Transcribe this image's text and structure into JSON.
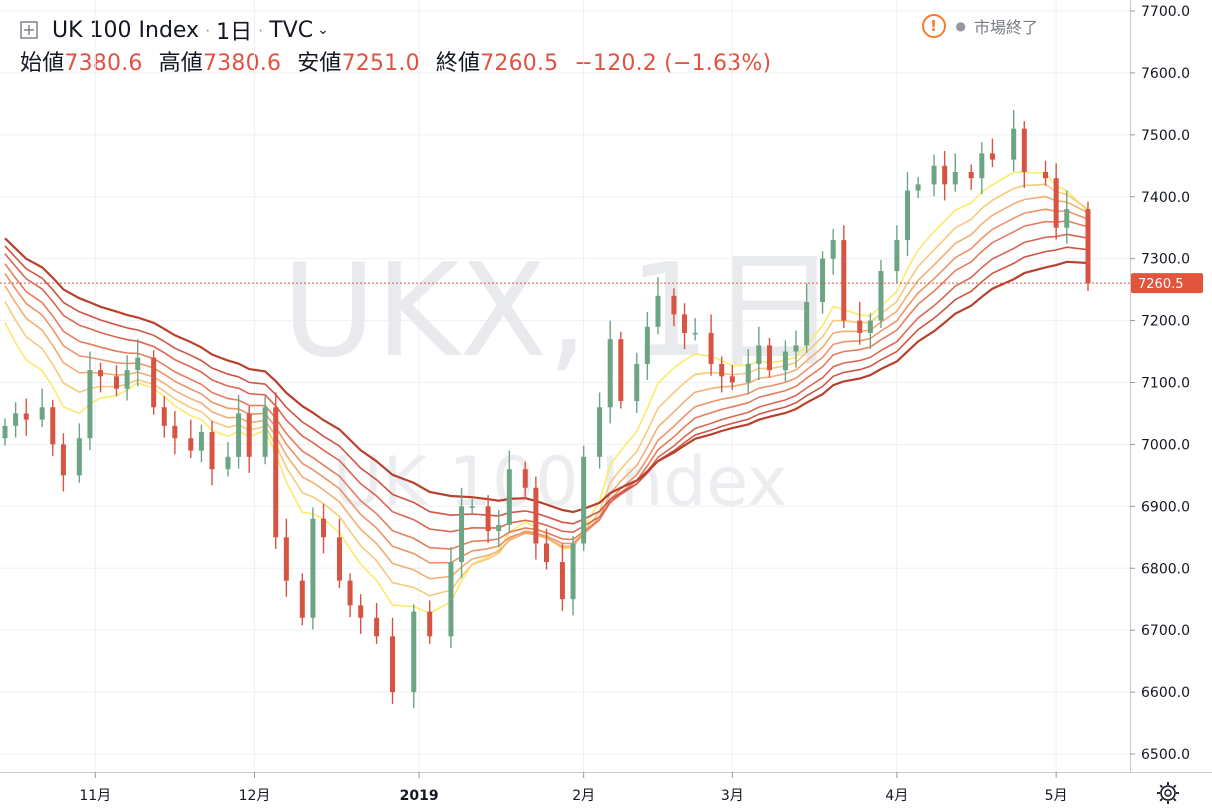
{
  "header": {
    "symbol_title": "UK 100 Index",
    "interval": "1日",
    "exchange": "TVC",
    "ohlc": [
      {
        "label": "始値",
        "value": "7380.6"
      },
      {
        "label": "高値",
        "value": "7380.6"
      },
      {
        "label": "安値",
        "value": "7251.0"
      },
      {
        "label": "終値",
        "value": "7260.5"
      }
    ],
    "change": "−120.2 (−1.63%)",
    "market_status": "市場終了"
  },
  "watermark": {
    "line1": "UKX, 1日",
    "line2": "UK 100 Index"
  },
  "price_badge": "7260.5",
  "colors": {
    "up": "#6ba583",
    "down": "#d75442",
    "price_line": "#e0553c",
    "grid": "#eef0f3"
  },
  "chart_data": {
    "type": "candlestick",
    "y_axis": {
      "min": 6500,
      "max": 7700,
      "ticks": [
        "6500.0",
        "6600.0",
        "6700.0",
        "6800.0",
        "6900.0",
        "7000.0",
        "7100.0",
        "7200.0",
        "7300.0",
        "7400.0",
        "7500.0",
        "7600.0",
        "7700.0"
      ]
    },
    "x_axis": {
      "ticks": [
        {
          "label": "11月",
          "date": "2018-11-01"
        },
        {
          "label": "12月",
          "date": "2018-12-01"
        },
        {
          "label": "2019",
          "date": "2019-01-01"
        },
        {
          "label": "2月",
          "date": "2019-02-01"
        },
        {
          "label": "3月",
          "date": "2019-03-01"
        },
        {
          "label": "4月",
          "date": "2019-04-01"
        },
        {
          "label": "5月",
          "date": "2019-05-01"
        }
      ]
    },
    "last_price": 7260.5,
    "price_close_series": [
      [
        "2018-10-15",
        7030
      ],
      [
        "2018-10-17",
        7050
      ],
      [
        "2018-10-19",
        7040
      ],
      [
        "2018-10-22",
        7060
      ],
      [
        "2018-10-24",
        7000
      ],
      [
        "2018-10-26",
        6950
      ],
      [
        "2018-10-29",
        7010
      ],
      [
        "2018-10-31",
        7120
      ],
      [
        "2018-11-02",
        7110
      ],
      [
        "2018-11-05",
        7090
      ],
      [
        "2018-11-07",
        7120
      ],
      [
        "2018-11-09",
        7140
      ],
      [
        "2018-11-12",
        7060
      ],
      [
        "2018-11-14",
        7030
      ],
      [
        "2018-11-16",
        7010
      ],
      [
        "2018-11-19",
        6990
      ],
      [
        "2018-11-21",
        7020
      ],
      [
        "2018-11-23",
        6960
      ],
      [
        "2018-11-26",
        6980
      ],
      [
        "2018-11-28",
        7050
      ],
      [
        "2018-11-30",
        6980
      ],
      [
        "2018-12-03",
        7060
      ],
      [
        "2018-12-05",
        6850
      ],
      [
        "2018-12-07",
        6780
      ],
      [
        "2018-12-10",
        6720
      ],
      [
        "2018-12-12",
        6880
      ],
      [
        "2018-12-14",
        6850
      ],
      [
        "2018-12-17",
        6780
      ],
      [
        "2018-12-19",
        6740
      ],
      [
        "2018-12-21",
        6720
      ],
      [
        "2018-12-24",
        6690
      ],
      [
        "2018-12-27",
        6600
      ],
      [
        "2018-12-31",
        6730
      ],
      [
        "2019-01-03",
        6690
      ],
      [
        "2019-01-07",
        6810
      ],
      [
        "2019-01-09",
        6900
      ],
      [
        "2019-01-11",
        6900
      ],
      [
        "2019-01-14",
        6860
      ],
      [
        "2019-01-16",
        6870
      ],
      [
        "2019-01-18",
        6960
      ],
      [
        "2019-01-21",
        6930
      ],
      [
        "2019-01-23",
        6840
      ],
      [
        "2019-01-25",
        6810
      ],
      [
        "2019-01-28",
        6750
      ],
      [
        "2019-01-30",
        6840
      ],
      [
        "2019-02-01",
        6980
      ],
      [
        "2019-02-04",
        7060
      ],
      [
        "2019-02-06",
        7170
      ],
      [
        "2019-02-08",
        7070
      ],
      [
        "2019-02-11",
        7130
      ],
      [
        "2019-02-13",
        7190
      ],
      [
        "2019-02-15",
        7240
      ],
      [
        "2019-02-18",
        7210
      ],
      [
        "2019-02-20",
        7180
      ],
      [
        "2019-02-22",
        7180
      ],
      [
        "2019-02-25",
        7130
      ],
      [
        "2019-02-27",
        7110
      ],
      [
        "2019-03-01",
        7100
      ],
      [
        "2019-03-04",
        7130
      ],
      [
        "2019-03-06",
        7160
      ],
      [
        "2019-03-08",
        7120
      ],
      [
        "2019-03-11",
        7150
      ],
      [
        "2019-03-13",
        7160
      ],
      [
        "2019-03-15",
        7230
      ],
      [
        "2019-03-18",
        7300
      ],
      [
        "2019-03-20",
        7330
      ],
      [
        "2019-03-22",
        7200
      ],
      [
        "2019-03-25",
        7180
      ],
      [
        "2019-03-27",
        7200
      ],
      [
        "2019-03-29",
        7280
      ],
      [
        "2019-04-01",
        7330
      ],
      [
        "2019-04-03",
        7410
      ],
      [
        "2019-04-05",
        7420
      ],
      [
        "2019-04-08",
        7450
      ],
      [
        "2019-04-10",
        7420
      ],
      [
        "2019-04-12",
        7440
      ],
      [
        "2019-04-15",
        7430
      ],
      [
        "2019-04-17",
        7470
      ],
      [
        "2019-04-19",
        7460
      ],
      [
        "2019-04-23",
        7510
      ],
      [
        "2019-04-25",
        7440
      ],
      [
        "2019-04-29",
        7430
      ],
      [
        "2019-05-01",
        7350
      ],
      [
        "2019-05-03",
        7380
      ],
      [
        "2019-05-07",
        7260
      ]
    ],
    "ribbon_note_colors": [
      "#fde96b",
      "#f8c97a",
      "#f3ae73",
      "#ee946a",
      "#e87c5e",
      "#dd6651",
      "#d05444",
      "#b8402d"
    ]
  }
}
